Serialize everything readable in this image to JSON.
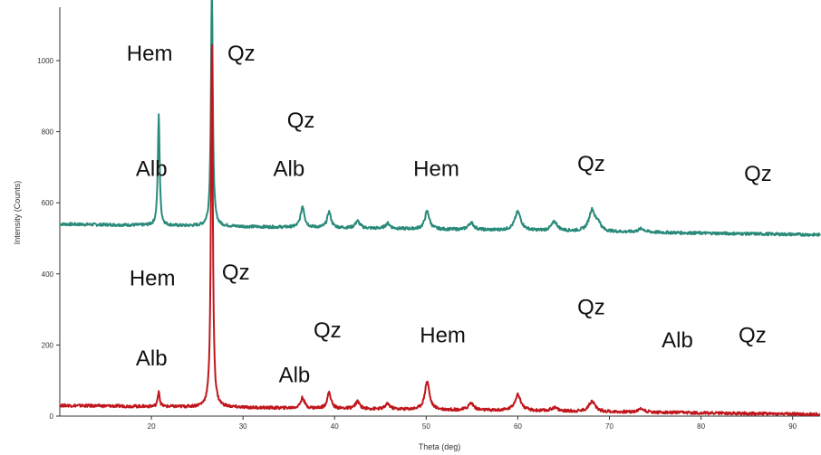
{
  "chart_data": {
    "type": "line",
    "title": "",
    "xlabel": "Theta (deg)",
    "ylabel": "Intensity (Counts)",
    "xlim": [
      10,
      93
    ],
    "ylim": [
      0,
      1150
    ],
    "x_ticks": [
      20,
      30,
      40,
      50,
      60,
      70,
      80,
      90
    ],
    "x_tick_labels": [
      "20",
      "30",
      "40",
      "50",
      "60",
      "70",
      "80",
      "90"
    ],
    "y_ticks": [
      0,
      200,
      400,
      600,
      800,
      1000
    ],
    "y_tick_labels": [
      "0",
      "200",
      "400",
      "600",
      "800",
      "1000"
    ],
    "grid": false,
    "legend": "none",
    "series": [
      {
        "color": "#2a8a7a",
        "baseline": 540,
        "baseline_end": 510,
        "peaks": [
          {
            "x": 20.8,
            "h": 310,
            "w": 0.12
          },
          {
            "x": 26.6,
            "h": 680,
            "w": 0.12
          },
          {
            "x": 36.5,
            "h": 60,
            "w": 0.25
          },
          {
            "x": 39.4,
            "h": 45,
            "w": 0.25
          },
          {
            "x": 42.5,
            "h": 20,
            "w": 0.3
          },
          {
            "x": 45.8,
            "h": 15,
            "w": 0.3
          },
          {
            "x": 50.1,
            "h": 50,
            "w": 0.3
          },
          {
            "x": 54.9,
            "h": 20,
            "w": 0.35
          },
          {
            "x": 60.0,
            "h": 52,
            "w": 0.4
          },
          {
            "x": 64.0,
            "h": 25,
            "w": 0.4
          },
          {
            "x": 68.1,
            "h": 60,
            "w": 0.4
          },
          {
            "x": 68.8,
            "h": 20,
            "w": 0.3
          },
          {
            "x": 73.5,
            "h": 10,
            "w": 0.4
          }
        ]
      },
      {
        "color": "#c0161c",
        "baseline": 30,
        "baseline_end": 5,
        "peaks": [
          {
            "x": 20.8,
            "h": 45,
            "w": 0.12
          },
          {
            "x": 26.6,
            "h": 1020,
            "w": 0.12
          },
          {
            "x": 36.5,
            "h": 30,
            "w": 0.25
          },
          {
            "x": 39.4,
            "h": 45,
            "w": 0.25
          },
          {
            "x": 42.5,
            "h": 20,
            "w": 0.3
          },
          {
            "x": 45.8,
            "h": 15,
            "w": 0.3
          },
          {
            "x": 50.1,
            "h": 80,
            "w": 0.3
          },
          {
            "x": 54.9,
            "h": 20,
            "w": 0.35
          },
          {
            "x": 60.0,
            "h": 45,
            "w": 0.4
          },
          {
            "x": 64.0,
            "h": 10,
            "w": 0.4
          },
          {
            "x": 68.1,
            "h": 30,
            "w": 0.4
          },
          {
            "x": 73.5,
            "h": 10,
            "w": 0.4
          }
        ]
      }
    ],
    "annotations": [
      {
        "text": "Hem",
        "x": 17.3,
        "y": 1000
      },
      {
        "text": "Qz",
        "x": 28.3,
        "y": 1000
      },
      {
        "text": "Alb",
        "x": 18.3,
        "y": 676
      },
      {
        "text": "Qz",
        "x": 34.8,
        "y": 812
      },
      {
        "text": "Alb",
        "x": 33.3,
        "y": 676
      },
      {
        "text": "Hem",
        "x": 48.6,
        "y": 676
      },
      {
        "text": "Qz",
        "x": 66.5,
        "y": 690
      },
      {
        "text": "Qz",
        "x": 84.7,
        "y": 661
      },
      {
        "text": "Hem",
        "x": 17.6,
        "y": 368
      },
      {
        "text": "Qz",
        "x": 27.7,
        "y": 384
      },
      {
        "text": "Alb",
        "x": 18.3,
        "y": 143
      },
      {
        "text": "Alb",
        "x": 33.9,
        "y": 96
      },
      {
        "text": "Qz",
        "x": 37.7,
        "y": 221
      },
      {
        "text": "Hem",
        "x": 49.3,
        "y": 207
      },
      {
        "text": "Qz",
        "x": 66.5,
        "y": 286
      },
      {
        "text": "Alb",
        "x": 75.7,
        "y": 193
      },
      {
        "text": "Qz",
        "x": 84.1,
        "y": 207
      }
    ]
  }
}
